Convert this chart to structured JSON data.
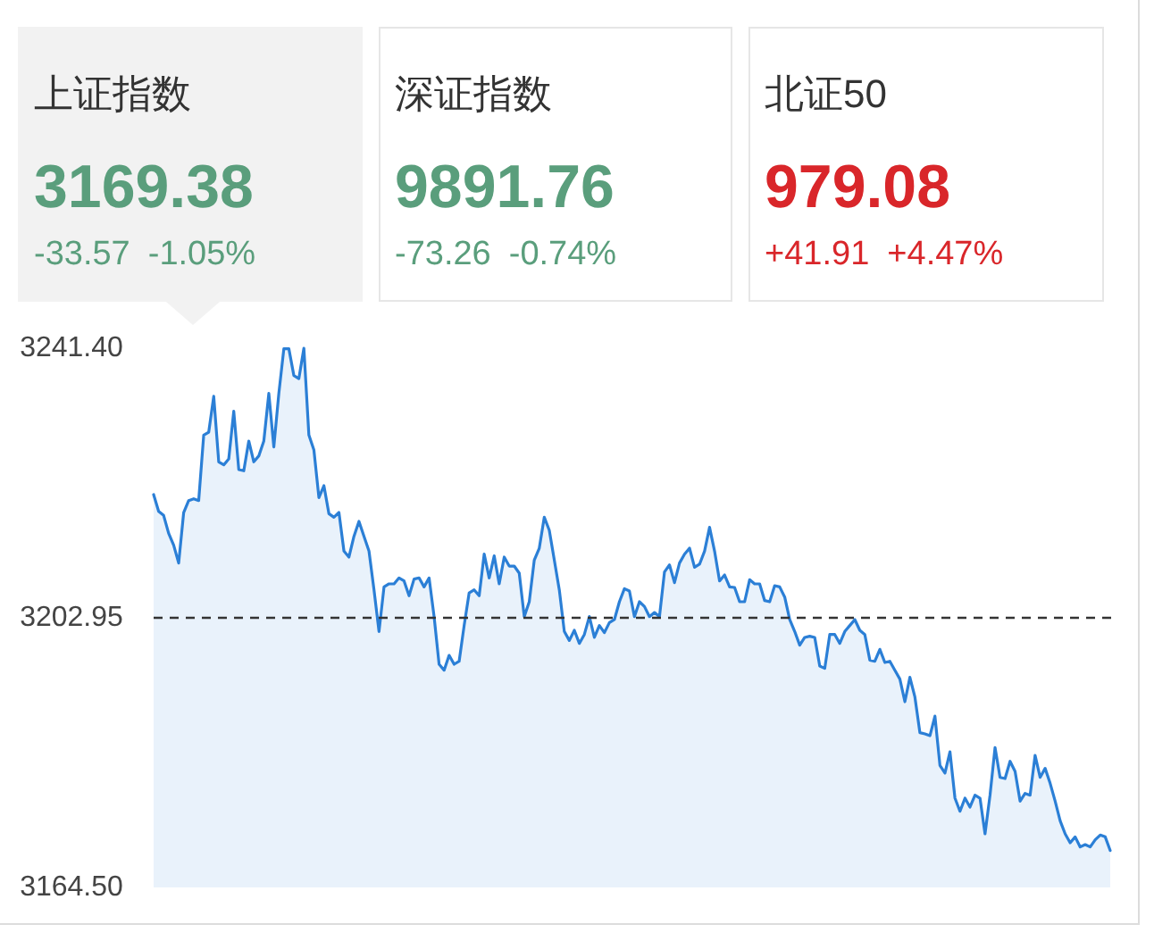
{
  "chart_data": [
    {
      "type": "other",
      "title": "上证指数",
      "annotations": [
        "3169.38",
        "-33.57",
        "-1.05%"
      ],
      "color": "#5a9e7c"
    },
    {
      "type": "other",
      "title": "深证指数",
      "annotations": [
        "9891.76",
        "-73.26",
        "-0.74%"
      ],
      "color": "#5a9e7c"
    },
    {
      "type": "other",
      "title": "北证50",
      "annotations": [
        "979.08",
        "+41.91",
        "+4.47%"
      ],
      "color": "#d9262a"
    },
    {
      "type": "area",
      "categories": [
        null,
        null,
        null,
        null,
        null,
        null,
        null,
        null,
        null,
        null,
        null,
        null,
        null,
        null,
        null,
        null,
        null,
        null,
        null,
        null,
        null,
        null,
        null,
        null,
        null,
        null,
        null,
        null,
        null,
        null,
        null,
        null,
        null,
        null,
        null,
        null,
        null,
        null,
        null,
        null,
        null,
        null,
        null,
        null,
        null,
        null,
        null,
        null,
        null,
        null,
        null,
        null,
        null,
        null,
        null,
        null,
        null,
        null,
        null,
        null,
        null,
        null,
        null,
        null,
        null,
        null,
        null,
        null,
        null,
        null,
        null,
        null,
        null,
        null,
        null,
        null,
        null,
        null,
        null,
        null,
        null,
        null,
        null,
        null,
        null,
        null,
        null,
        null,
        null,
        null,
        null,
        null,
        null,
        null,
        null,
        null,
        null,
        null,
        null,
        null,
        null,
        null,
        null,
        null,
        null,
        null,
        null,
        null,
        null,
        null,
        null,
        null,
        null,
        null,
        null,
        null,
        null,
        null,
        null,
        null,
        null,
        null,
        null,
        null,
        null,
        null,
        null,
        null,
        null,
        null,
        null,
        null,
        null,
        null,
        null,
        null,
        null,
        null,
        null,
        null,
        null,
        null,
        null,
        null,
        null,
        null,
        null,
        null,
        null,
        null,
        null,
        null,
        null,
        null,
        null,
        null,
        null,
        null,
        null,
        null,
        null,
        null,
        null,
        null,
        null,
        null,
        null,
        null,
        null,
        null,
        null,
        null,
        null,
        null,
        null,
        null,
        null,
        null,
        null,
        null,
        null,
        null,
        null,
        null,
        null,
        null,
        null,
        null,
        null,
        null,
        null,
        null
      ],
      "ylim": [
        3164.5,
        3241.4
      ],
      "yticks": [
        {
          "value": 3164.5,
          "label": "3164.50"
        },
        {
          "value": 3202.95,
          "label": "3202.95"
        },
        {
          "value": 3241.4,
          "label": "3241.40"
        }
      ],
      "tick_labels": "y",
      "ref_lines": [
        {
          "axis": "y",
          "value": 3202.95,
          "color": "#333333",
          "line_style": "dashed"
        }
      ],
      "series": [
        {
          "color": "#2b7fd6",
          "values": [
            3220.52,
            3218.14,
            3217.55,
            3215.0,
            3213.31,
            3210.76,
            3217.97,
            3219.67,
            3219.93,
            3219.67,
            3229.01,
            3229.43,
            3234.53,
            3225.19,
            3224.76,
            3225.61,
            3232.4,
            3224.09,
            3223.92,
            3228.16,
            3225.19,
            3226.04,
            3228.16,
            3234.95,
            3227.31,
            3234.95,
            3241.32,
            3241.32,
            3237.5,
            3237.07,
            3241.4,
            3229.01,
            3226.89,
            3220.1,
            3221.79,
            3217.8,
            3217.29,
            3217.97,
            3212.46,
            3211.61,
            3214.58,
            3216.7,
            3214.58,
            3212.46,
            3206.94,
            3201.0,
            3207.36,
            3207.79,
            3207.79,
            3208.64,
            3208.21,
            3206.09,
            3208.47,
            3208.64,
            3207.36,
            3208.64,
            3203.12,
            3196.33,
            3195.48,
            3197.6,
            3196.33,
            3196.75,
            3201.85,
            3206.51,
            3206.94,
            3206.09,
            3212.03,
            3208.64,
            3211.78,
            3207.79,
            3211.61,
            3210.33,
            3210.33,
            3209.32,
            3203.12,
            3205.24,
            3211.18,
            3212.88,
            3217.29,
            3215.43,
            3211.18,
            3206.94,
            3201.0,
            3199.72,
            3201.17,
            3199.3,
            3200.57,
            3203.12,
            3200.15,
            3201.85,
            3200.83,
            3202.27,
            3202.7,
            3205.24,
            3207.11,
            3206.77,
            3203.12,
            3205.24,
            3204.56,
            3203.12,
            3203.71,
            3203.12,
            3209.49,
            3210.5,
            3207.96,
            3210.76,
            3212.03,
            3212.88,
            3210.16,
            3210.59,
            3212.46,
            3215.85,
            3212.46,
            3208.21,
            3209.06,
            3207.36,
            3207.28,
            3205.24,
            3205.24,
            3208.38,
            3207.79,
            3207.79,
            3205.41,
            3205.24,
            3207.53,
            3207.36,
            3205.92,
            3202.7,
            3201.0,
            3199.05,
            3200.15,
            3200.32,
            3200.15,
            3196.07,
            3195.74,
            3200.57,
            3200.57,
            3199.3,
            3201.0,
            3201.85,
            3202.7,
            3201.17,
            3200.57,
            3196.92,
            3196.75,
            3198.45,
            3196.58,
            3196.75,
            3195.48,
            3194.21,
            3190.98,
            3194.46,
            3191.66,
            3186.57,
            3186.4,
            3186.14,
            3188.94,
            3181.9,
            3180.8,
            3183.85,
            3177.23,
            3175.36,
            3177.23,
            3175.96,
            3177.66,
            3177.23,
            3172.14,
            3177.66,
            3184.45,
            3180.2,
            3180.03,
            3182.49,
            3181.05,
            3176.81,
            3177.91,
            3177.66,
            3183.34,
            3180.2,
            3181.48,
            3179.35,
            3176.81,
            3174.01,
            3172.14,
            3170.87,
            3171.71,
            3170.27,
            3170.61,
            3170.27,
            3171.29,
            3171.97,
            3171.71,
            3169.76
          ]
        }
      ]
    }
  ]
}
